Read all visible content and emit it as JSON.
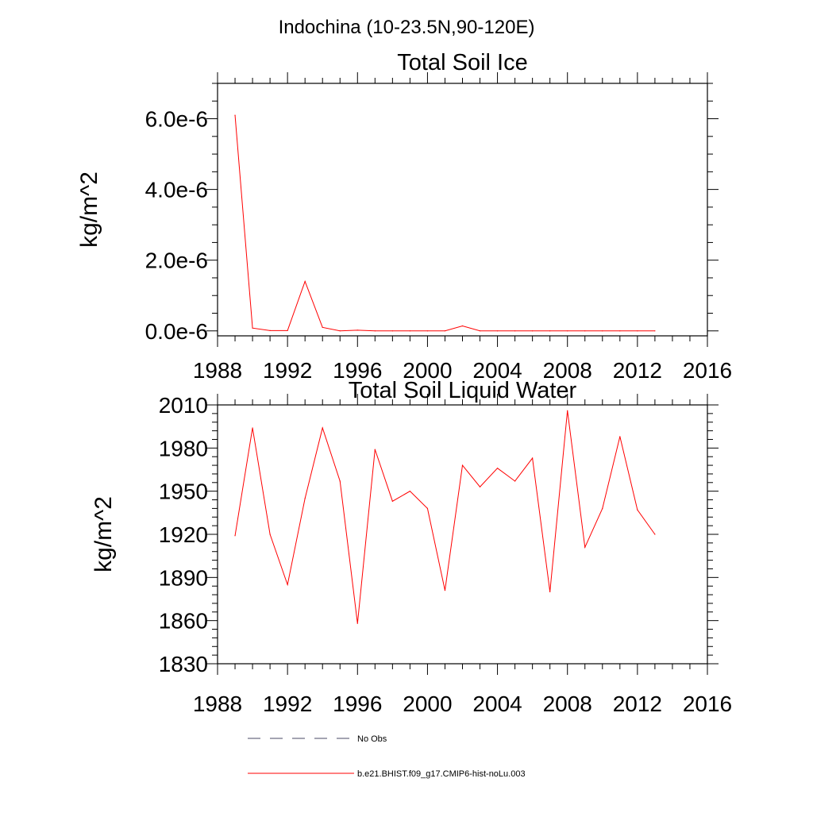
{
  "figure": {
    "super_title": "Indochina (10-23.5N,90-120E)"
  },
  "chart_data": [
    {
      "type": "line",
      "title": "Total Soil Ice",
      "ylabel": "kg/m^2",
      "xlabel": "",
      "xlim": [
        1988,
        2016
      ],
      "ylim": [
        -1.4e-07,
        7e-06
      ],
      "x_ticks": [
        1988,
        1992,
        1996,
        2000,
        2004,
        2008,
        2012,
        2016
      ],
      "x_tick_labels": [
        "1988",
        "1992",
        "1996",
        "2000",
        "2004",
        "2008",
        "2012",
        "2016"
      ],
      "y_ticks": [
        0,
        2e-06,
        4e-06,
        6e-06
      ],
      "y_tick_labels": [
        "0.0e-6",
        "2.0e-6",
        "4.0e-6",
        "6.0e-6"
      ],
      "grid": false,
      "series": [
        {
          "name": "b.e21.BHIST.f09_g17.CMIP6-hist-noLu.003",
          "color": "#ff0000",
          "x": [
            1989,
            1990,
            1991,
            1992,
            1993,
            1994,
            1995,
            1996,
            1997,
            1998,
            1999,
            2000,
            2001,
            2002,
            2003,
            2004,
            2005,
            2006,
            2007,
            2008,
            2009,
            2010,
            2011,
            2012,
            2013
          ],
          "y": [
            6.1e-06,
            8e-08,
            1e-08,
            1e-08,
            1.4e-06,
            1e-07,
            0.0,
            2e-08,
            0.0,
            0.0,
            0.0,
            0.0,
            0.0,
            1.4e-07,
            0.0,
            0.0,
            0.0,
            0.0,
            0.0,
            0.0,
            0.0,
            0.0,
            0.0,
            0.0,
            0.0
          ]
        }
      ]
    },
    {
      "type": "line",
      "title": "Total Soil Liquid Water",
      "ylabel": "kg/m^2",
      "xlabel": "",
      "xlim": [
        1988,
        2016
      ],
      "ylim": [
        1830,
        2010
      ],
      "x_ticks": [
        1988,
        1992,
        1996,
        2000,
        2004,
        2008,
        2012,
        2016
      ],
      "x_tick_labels": [
        "1988",
        "1992",
        "1996",
        "2000",
        "2004",
        "2008",
        "2012",
        "2016"
      ],
      "y_ticks": [
        1830,
        1860,
        1890,
        1920,
        1950,
        1980,
        2010
      ],
      "y_tick_labels": [
        "1830",
        "1860",
        "1890",
        "1920",
        "1950",
        "1980",
        "2010"
      ],
      "grid": false,
      "series": [
        {
          "name": "b.e21.BHIST.f09_g17.CMIP6-hist-noLu.003",
          "color": "#ff0000",
          "x": [
            1989,
            1990,
            1991,
            1992,
            1993,
            1994,
            1995,
            1996,
            1997,
            1998,
            1999,
            2000,
            2001,
            2002,
            2003,
            2004,
            2005,
            2006,
            2007,
            2008,
            2009,
            2010,
            2011,
            2012,
            2013
          ],
          "y": [
            1919,
            1994,
            1920,
            1885,
            1945,
            1994,
            1957,
            1858,
            1979,
            1943,
            1950,
            1938,
            1881,
            1968,
            1953,
            1966,
            1957,
            1973,
            1880,
            2006,
            1911,
            1938,
            1988,
            1937,
            1920
          ]
        }
      ]
    }
  ],
  "legend": {
    "placement": "bottom",
    "items": [
      {
        "label": "No Obs",
        "color": "#4a4a66",
        "style": "dashed"
      },
      {
        "label": "b.e21.BHIST.f09_g17.CMIP6-hist-noLu.003",
        "color": "#ff0000",
        "style": "solid"
      }
    ]
  }
}
